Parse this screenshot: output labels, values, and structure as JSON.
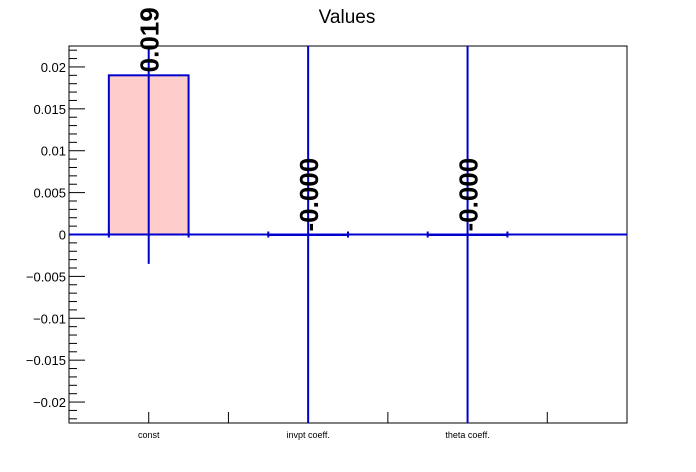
{
  "chart_data": {
    "type": "bar",
    "title": "Values",
    "categories": [
      "const",
      "invpt coeff.",
      "theta coeff."
    ],
    "values": [
      0.019,
      0.0,
      0.0
    ],
    "errors": [
      0.0225,
      0.0225,
      0.0225
    ],
    "value_labels": [
      "0.019",
      "-0.000",
      "-0.000"
    ],
    "ylim": [
      -0.0225,
      0.0225
    ],
    "y_ticks": [
      -0.02,
      -0.015,
      -0.01,
      -0.005,
      0,
      0.005,
      0.01,
      0.015,
      0.02
    ],
    "y_tick_labels": [
      "−0.02",
      "−0.015",
      "−0.01",
      "−0.005",
      "0",
      "0.005",
      "0.01",
      "0.015",
      "0.02"
    ],
    "colors": {
      "bar_fill": "#ffcccc",
      "bar_edge": "#0000cc",
      "error_bar": "#0000cc",
      "axis": "#000000"
    }
  }
}
